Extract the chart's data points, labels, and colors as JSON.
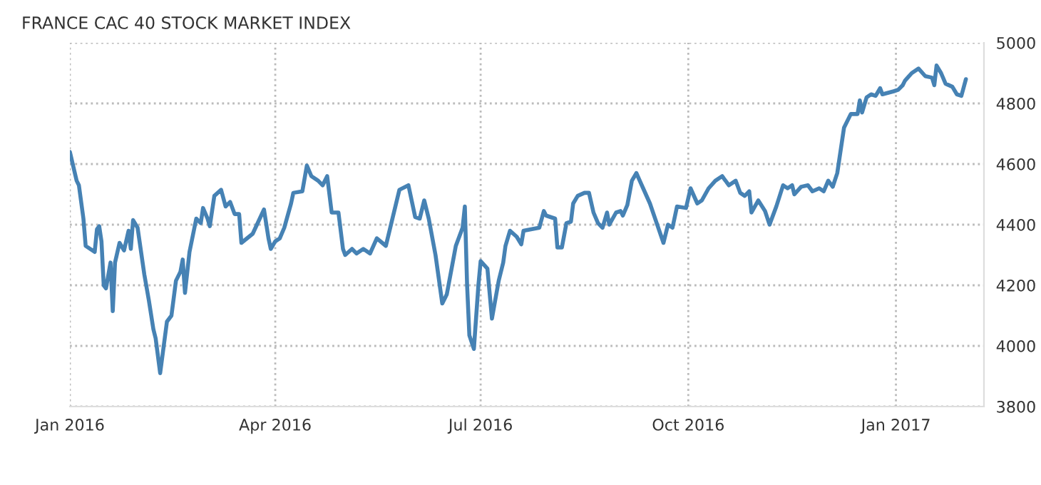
{
  "chart_data": {
    "type": "line",
    "title": "FRANCE CAC 40 STOCK MARKET INDEX",
    "x": [
      "2016-01-01",
      "2016-01-04",
      "2016-01-05",
      "2016-01-07",
      "2016-01-08",
      "2016-01-10",
      "2016-01-12",
      "2016-01-13",
      "2016-01-14",
      "2016-01-15",
      "2016-01-16",
      "2016-01-17",
      "2016-01-19",
      "2016-01-20",
      "2016-01-21",
      "2016-01-23",
      "2016-01-25",
      "2016-01-27",
      "2016-01-28",
      "2016-01-29",
      "2016-01-31",
      "2016-02-03",
      "2016-02-05",
      "2016-02-07",
      "2016-02-08",
      "2016-02-10",
      "2016-02-13",
      "2016-02-15",
      "2016-02-17",
      "2016-02-19",
      "2016-02-20",
      "2016-02-21",
      "2016-02-23",
      "2016-02-26",
      "2016-02-28",
      "2016-02-29",
      "2016-03-02",
      "2016-03-03",
      "2016-03-05",
      "2016-03-08",
      "2016-03-10",
      "2016-03-12",
      "2016-03-14",
      "2016-03-16",
      "2016-03-17",
      "2016-03-22",
      "2016-03-27",
      "2016-03-29",
      "2016-03-30",
      "2016-04-01",
      "2016-04-03",
      "2016-04-05",
      "2016-04-08",
      "2016-04-09",
      "2016-04-13",
      "2016-04-15",
      "2016-04-17",
      "2016-04-20",
      "2016-04-22",
      "2016-04-24",
      "2016-04-26",
      "2016-04-29",
      "2016-05-01",
      "2016-05-02",
      "2016-05-05",
      "2016-05-07",
      "2016-05-10",
      "2016-05-13",
      "2016-05-16",
      "2016-05-20",
      "2016-05-26",
      "2016-05-30",
      "2016-06-02",
      "2016-06-04",
      "2016-06-06",
      "2016-06-08",
      "2016-06-11",
      "2016-06-14",
      "2016-06-16",
      "2016-06-20",
      "2016-06-23",
      "2016-06-24",
      "2016-06-25",
      "2016-06-26",
      "2016-06-28",
      "2016-06-30",
      "2016-07-01",
      "2016-07-04",
      "2016-07-06",
      "2016-07-09",
      "2016-07-11",
      "2016-07-12",
      "2016-07-14",
      "2016-07-17",
      "2016-07-19",
      "2016-07-20",
      "2016-07-27",
      "2016-07-29",
      "2016-07-30",
      "2016-08-03",
      "2016-08-04",
      "2016-08-06",
      "2016-08-08",
      "2016-08-10",
      "2016-08-11",
      "2016-08-13",
      "2016-08-16",
      "2016-08-18",
      "2016-08-20",
      "2016-08-22",
      "2016-08-24",
      "2016-08-26",
      "2016-08-27",
      "2016-08-30",
      "2016-09-01",
      "2016-09-02",
      "2016-09-04",
      "2016-09-06",
      "2016-09-08",
      "2016-09-11",
      "2016-09-14",
      "2016-09-17",
      "2016-09-20",
      "2016-09-22",
      "2016-09-24",
      "2016-09-26",
      "2016-09-30",
      "2016-10-02",
      "2016-10-05",
      "2016-10-07",
      "2016-10-10",
      "2016-10-13",
      "2016-10-16",
      "2016-10-19",
      "2016-10-22",
      "2016-10-24",
      "2016-10-26",
      "2016-10-28",
      "2016-10-29",
      "2016-11-01",
      "2016-11-04",
      "2016-11-06",
      "2016-11-09",
      "2016-11-12",
      "2016-11-14",
      "2016-11-16",
      "2016-11-17",
      "2016-11-20",
      "2016-11-23",
      "2016-11-25",
      "2016-11-28",
      "2016-11-30",
      "2016-12-02",
      "2016-12-04",
      "2016-12-06",
      "2016-12-07",
      "2016-12-09",
      "2016-12-12",
      "2016-12-15",
      "2016-12-16",
      "2016-12-17",
      "2016-12-19",
      "2016-12-21",
      "2016-12-23",
      "2016-12-25",
      "2016-12-26",
      "2016-12-31",
      "2017-01-02",
      "2017-01-04",
      "2017-01-05",
      "2017-01-08",
      "2017-01-11",
      "2017-01-14",
      "2017-01-17",
      "2017-01-18",
      "2017-01-19",
      "2017-01-21",
      "2017-01-23",
      "2017-01-26",
      "2017-01-28",
      "2017-01-30",
      "2017-02-01"
    ],
    "series": [
      {
        "color": "#4682b4",
        "values": [
          4640,
          4545,
          4530,
          4420,
          4330,
          4320,
          4310,
          4385,
          4395,
          4345,
          4200,
          4190,
          4275,
          4115,
          4275,
          4340,
          4315,
          4380,
          4320,
          4415,
          4390,
          4235,
          4150,
          4055,
          4025,
          3910,
          4080,
          4100,
          4215,
          4245,
          4285,
          4175,
          4310,
          4420,
          4405,
          4455,
          4420,
          4395,
          4495,
          4515,
          4460,
          4475,
          4435,
          4435,
          4340,
          4370,
          4450,
          4355,
          4320,
          4345,
          4355,
          4390,
          4470,
          4505,
          4510,
          4595,
          4560,
          4545,
          4530,
          4560,
          4440,
          4440,
          4320,
          4300,
          4320,
          4305,
          4320,
          4305,
          4355,
          4330,
          4515,
          4530,
          4425,
          4420,
          4480,
          4420,
          4300,
          4140,
          4170,
          4330,
          4390,
          4460,
          4200,
          4035,
          3990,
          4200,
          4280,
          4255,
          4090,
          4215,
          4275,
          4330,
          4380,
          4360,
          4335,
          4380,
          4390,
          4445,
          4430,
          4420,
          4325,
          4325,
          4405,
          4410,
          4470,
          4495,
          4505,
          4505,
          4440,
          4405,
          4390,
          4440,
          4400,
          4440,
          4445,
          4430,
          4465,
          4545,
          4570,
          4520,
          4470,
          4405,
          4340,
          4400,
          4390,
          4460,
          4455,
          4520,
          4470,
          4480,
          4520,
          4545,
          4560,
          4530,
          4545,
          4505,
          4495,
          4510,
          4440,
          4480,
          4445,
          4400,
          4460,
          4530,
          4520,
          4530,
          4500,
          4525,
          4530,
          4510,
          4520,
          4510,
          4545,
          4525,
          4570,
          4620,
          4720,
          4765,
          4765,
          4810,
          4770,
          4820,
          4830,
          4825,
          4850,
          4830,
          4840,
          4845,
          4860,
          4875,
          4900,
          4915,
          4890,
          4885,
          4860,
          4925,
          4900,
          4865,
          4855,
          4830,
          4825,
          4880
        ]
      }
    ],
    "xlim": [
      "2016-01-01",
      "2017-02-09"
    ],
    "xticks": [
      {
        "value": "2016-01-01",
        "label": "Jan 2016"
      },
      {
        "value": "2016-04-01",
        "label": "Apr 2016"
      },
      {
        "value": "2016-07-01",
        "label": "Jul 2016"
      },
      {
        "value": "2016-10-01",
        "label": "Oct 2016"
      },
      {
        "value": "2017-01-01",
        "label": "Jan 2017"
      }
    ],
    "ylim": [
      3800,
      5000
    ],
    "yticks": [
      3800,
      4000,
      4200,
      4400,
      4600,
      4800,
      5000
    ],
    "grid": true,
    "legend": false,
    "marker": "none",
    "line_style": "solid"
  }
}
